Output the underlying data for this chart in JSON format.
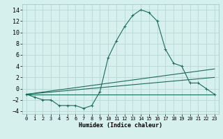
{
  "title": "",
  "xlabel": "Humidex (Indice chaleur)",
  "ylabel": "",
  "bg_color": "#d6f0ee",
  "grid_color": "#b8d8d4",
  "line_color": "#1a6b5a",
  "xlim": [
    -0.5,
    23.5
  ],
  "ylim": [
    -4.5,
    15.0
  ],
  "yticks": [
    -4,
    -2,
    0,
    2,
    4,
    6,
    8,
    10,
    12,
    14
  ],
  "xticks": [
    0,
    1,
    2,
    3,
    4,
    5,
    6,
    7,
    8,
    9,
    10,
    11,
    12,
    13,
    14,
    15,
    16,
    17,
    18,
    19,
    20,
    21,
    22,
    23
  ],
  "series": [
    {
      "x": [
        0,
        1,
        2,
        3,
        4,
        5,
        6,
        7,
        8,
        9,
        10,
        11,
        12,
        13,
        14,
        15,
        16,
        17,
        18,
        19,
        20,
        21,
        22,
        23
      ],
      "y": [
        -1,
        -1.5,
        -2,
        -2,
        -3,
        -3,
        -3,
        -3.5,
        -3,
        -0.5,
        5.5,
        8.5,
        11,
        13,
        14,
        13.5,
        12,
        7,
        4.5,
        4,
        1,
        1,
        0,
        -1
      ],
      "marker": "+"
    },
    {
      "x": [
        0,
        23
      ],
      "y": [
        -1,
        -1
      ],
      "marker": null
    },
    {
      "x": [
        0,
        23
      ],
      "y": [
        -1,
        2
      ],
      "marker": null
    },
    {
      "x": [
        0,
        23
      ],
      "y": [
        -1,
        3.5
      ],
      "marker": null
    }
  ]
}
